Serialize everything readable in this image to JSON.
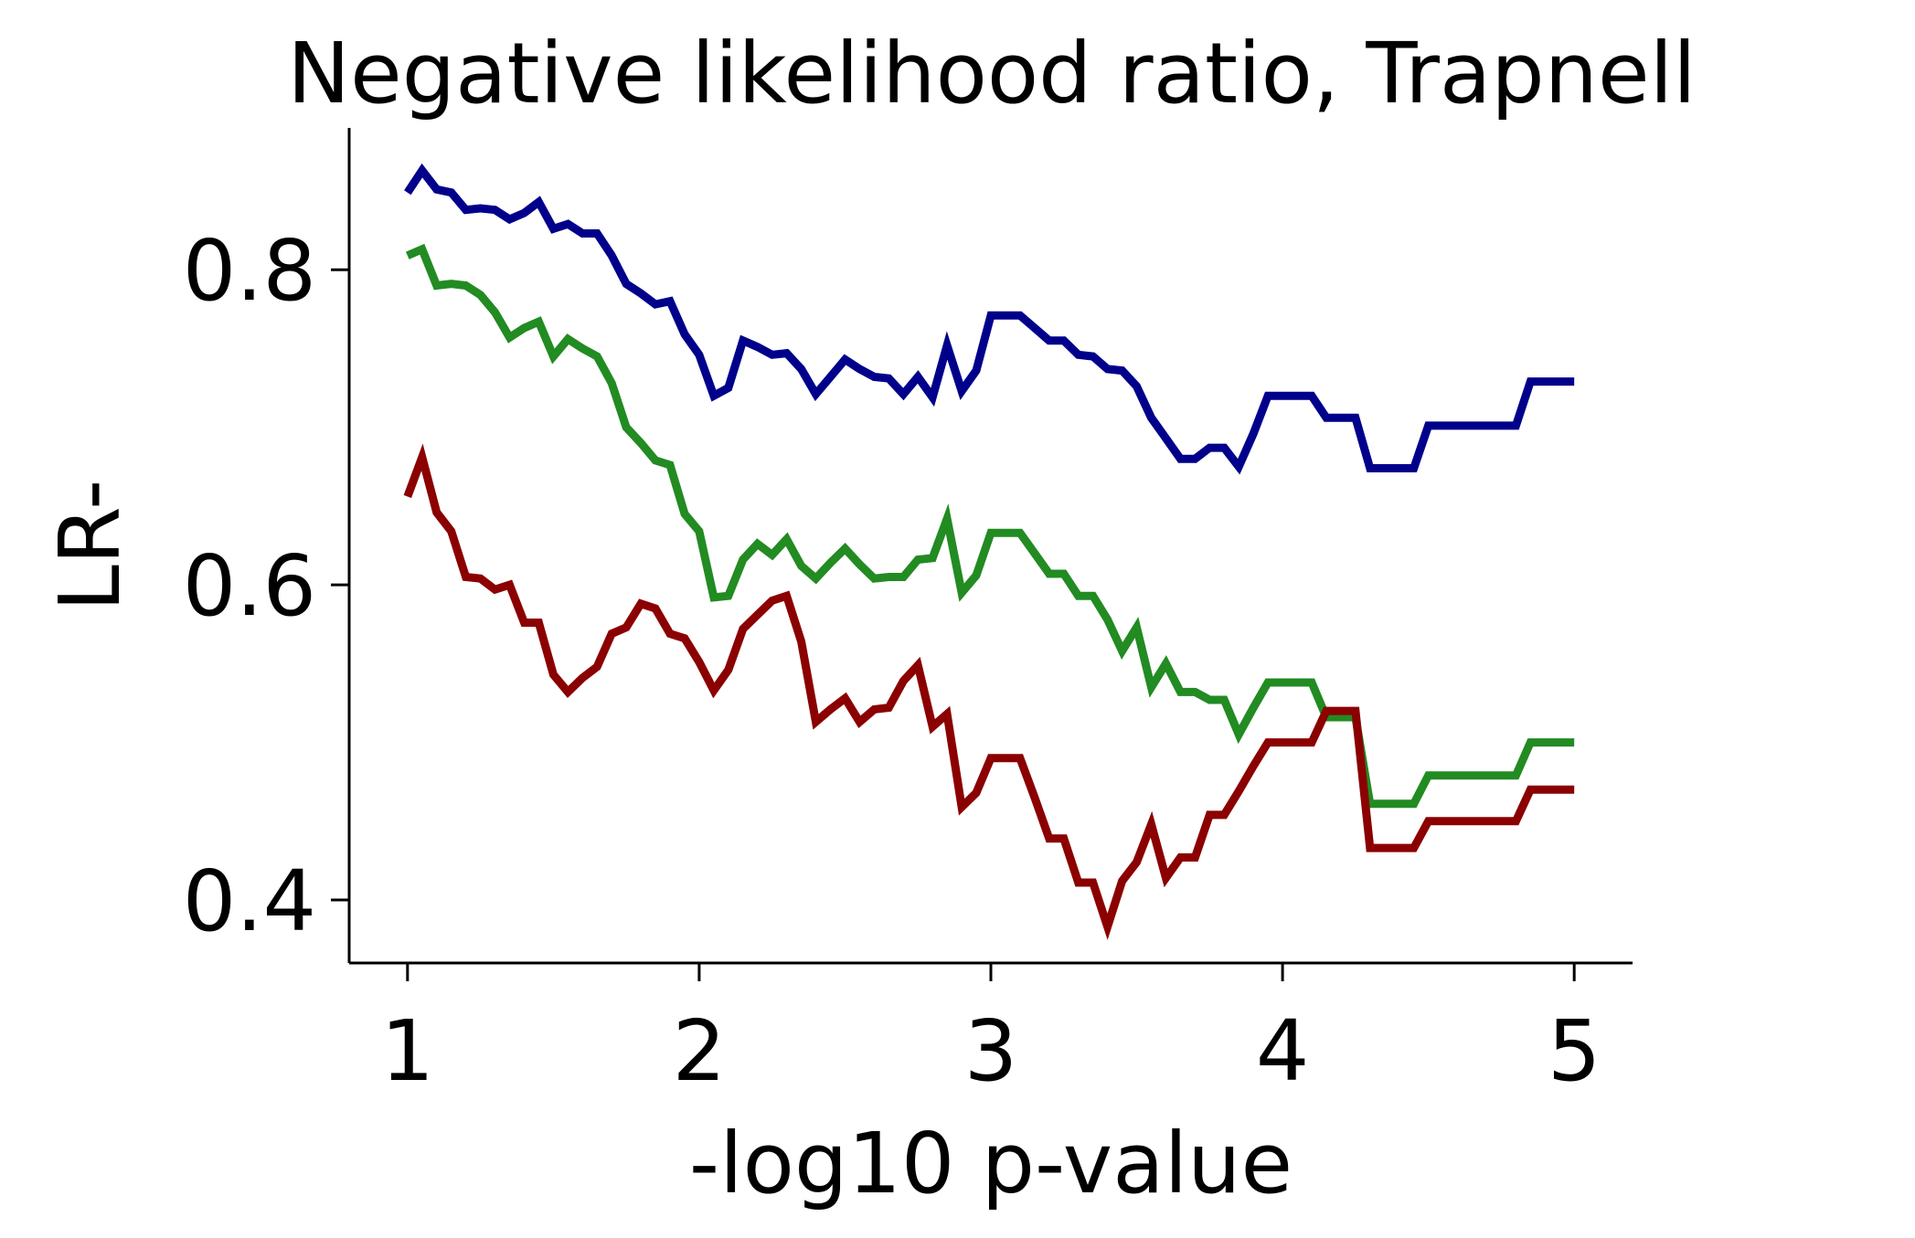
{
  "chart_data": {
    "type": "line",
    "title": "Negative likelihood ratio, Trapnell",
    "xlabel": "-log10 p-value",
    "ylabel": "LR-",
    "xlim": [
      0.8,
      5.2
    ],
    "ylim": [
      0.36,
      0.89
    ],
    "xticks": [
      1,
      2,
      3,
      4,
      5
    ],
    "xtick_labels": [
      "1",
      "2",
      "3",
      "4",
      "5"
    ],
    "yticks": [
      0.4,
      0.6,
      0.8
    ],
    "ytick_labels": [
      "0.4",
      "0.6",
      "0.8"
    ],
    "grid": false,
    "series": [
      {
        "color": "#00008b",
        "x": [
          1.0,
          1.05,
          1.1,
          1.15,
          1.2,
          1.25,
          1.3,
          1.35,
          1.4,
          1.45,
          1.5,
          1.55,
          1.6,
          1.65,
          1.7,
          1.75,
          1.8,
          1.85,
          1.9,
          1.95,
          2.0,
          2.05,
          2.1,
          2.15,
          2.2,
          2.25,
          2.3,
          2.35,
          2.4,
          2.45,
          2.5,
          2.55,
          2.6,
          2.65,
          2.7,
          2.75,
          2.8,
          2.85,
          2.9,
          2.95,
          3.0,
          3.05,
          3.1,
          3.15,
          3.2,
          3.25,
          3.3,
          3.35,
          3.4,
          3.45,
          3.5,
          3.55,
          3.6,
          3.65,
          3.7,
          3.75,
          3.8,
          3.85,
          3.9,
          3.95,
          4.0,
          4.05,
          4.1,
          4.15,
          4.2,
          4.25,
          4.3,
          4.35,
          4.4,
          4.45,
          4.5,
          4.55,
          4.6,
          4.65,
          4.7,
          4.75,
          4.8,
          4.85,
          4.9,
          4.95,
          5.0
        ],
        "y": [
          0.849,
          0.863,
          0.851,
          0.849,
          0.838,
          0.839,
          0.838,
          0.832,
          0.836,
          0.843,
          0.826,
          0.829,
          0.823,
          0.823,
          0.809,
          0.791,
          0.785,
          0.778,
          0.78,
          0.759,
          0.746,
          0.72,
          0.725,
          0.755,
          0.751,
          0.746,
          0.747,
          0.737,
          0.721,
          0.732,
          0.743,
          0.737,
          0.732,
          0.731,
          0.721,
          0.732,
          0.719,
          0.752,
          0.723,
          0.736,
          0.771,
          0.771,
          0.771,
          0.763,
          0.755,
          0.755,
          0.746,
          0.745,
          0.737,
          0.736,
          0.726,
          0.706,
          0.693,
          0.68,
          0.68,
          0.687,
          0.687,
          0.675,
          0.696,
          0.72,
          0.72,
          0.72,
          0.72,
          0.706,
          0.706,
          0.706,
          0.674,
          0.674,
          0.674,
          0.674,
          0.701,
          0.701,
          0.701,
          0.701,
          0.701,
          0.701,
          0.701,
          0.729,
          0.729,
          0.729,
          0.729
        ]
      },
      {
        "color": "#228b22",
        "x": [
          1.0,
          1.05,
          1.1,
          1.15,
          1.2,
          1.25,
          1.3,
          1.35,
          1.4,
          1.45,
          1.5,
          1.55,
          1.6,
          1.65,
          1.7,
          1.75,
          1.8,
          1.85,
          1.9,
          1.95,
          2.0,
          2.05,
          2.1,
          2.15,
          2.2,
          2.25,
          2.3,
          2.35,
          2.4,
          2.45,
          2.5,
          2.55,
          2.6,
          2.65,
          2.7,
          2.75,
          2.8,
          2.85,
          2.9,
          2.95,
          3.0,
          3.05,
          3.1,
          3.15,
          3.2,
          3.25,
          3.3,
          3.35,
          3.4,
          3.45,
          3.5,
          3.55,
          3.6,
          3.65,
          3.7,
          3.75,
          3.8,
          3.85,
          3.9,
          3.95,
          4.0,
          4.05,
          4.1,
          4.15,
          4.2,
          4.25,
          4.3,
          4.35,
          4.4,
          4.45,
          4.5,
          4.55,
          4.6,
          4.65,
          4.7,
          4.75,
          4.8,
          4.85,
          4.9,
          4.95,
          5.0
        ],
        "y": [
          0.809,
          0.813,
          0.79,
          0.791,
          0.79,
          0.784,
          0.773,
          0.757,
          0.763,
          0.767,
          0.745,
          0.756,
          0.75,
          0.745,
          0.728,
          0.7,
          0.69,
          0.679,
          0.676,
          0.645,
          0.634,
          0.592,
          0.593,
          0.616,
          0.626,
          0.619,
          0.629,
          0.612,
          0.604,
          0.614,
          0.623,
          0.613,
          0.604,
          0.605,
          0.605,
          0.616,
          0.617,
          0.642,
          0.595,
          0.606,
          0.633,
          0.633,
          0.633,
          0.62,
          0.607,
          0.607,
          0.593,
          0.593,
          0.578,
          0.558,
          0.573,
          0.535,
          0.55,
          0.532,
          0.532,
          0.527,
          0.527,
          0.505,
          0.522,
          0.538,
          0.538,
          0.538,
          0.538,
          0.516,
          0.516,
          0.516,
          0.461,
          0.461,
          0.461,
          0.461,
          0.479,
          0.479,
          0.479,
          0.479,
          0.479,
          0.479,
          0.479,
          0.5,
          0.5,
          0.5,
          0.5
        ]
      },
      {
        "color": "#8b0000",
        "x": [
          1.0,
          1.05,
          1.1,
          1.15,
          1.2,
          1.25,
          1.3,
          1.35,
          1.4,
          1.45,
          1.5,
          1.55,
          1.6,
          1.65,
          1.7,
          1.75,
          1.8,
          1.85,
          1.9,
          1.95,
          2.0,
          2.05,
          2.1,
          2.15,
          2.2,
          2.25,
          2.3,
          2.35,
          2.4,
          2.45,
          2.5,
          2.55,
          2.6,
          2.65,
          2.7,
          2.75,
          2.8,
          2.85,
          2.9,
          2.95,
          3.0,
          3.05,
          3.1,
          3.15,
          3.2,
          3.25,
          3.3,
          3.35,
          3.4,
          3.45,
          3.5,
          3.55,
          3.6,
          3.65,
          3.7,
          3.75,
          3.8,
          3.85,
          3.9,
          3.95,
          4.0,
          4.05,
          4.1,
          4.15,
          4.2,
          4.25,
          4.3,
          4.35,
          4.4,
          4.45,
          4.5,
          4.55,
          4.6,
          4.65,
          4.7,
          4.75,
          4.8,
          4.85,
          4.9,
          4.95,
          5.0
        ],
        "y": [
          0.656,
          0.681,
          0.646,
          0.634,
          0.605,
          0.604,
          0.597,
          0.6,
          0.576,
          0.576,
          0.543,
          0.532,
          0.541,
          0.548,
          0.569,
          0.573,
          0.588,
          0.585,
          0.569,
          0.566,
          0.551,
          0.533,
          0.546,
          0.572,
          0.581,
          0.59,
          0.593,
          0.564,
          0.513,
          0.521,
          0.528,
          0.513,
          0.521,
          0.522,
          0.539,
          0.549,
          0.51,
          0.518,
          0.459,
          0.468,
          0.49,
          0.49,
          0.49,
          0.465,
          0.439,
          0.439,
          0.411,
          0.411,
          0.383,
          0.412,
          0.424,
          0.448,
          0.414,
          0.427,
          0.427,
          0.454,
          0.454,
          0.469,
          0.485,
          0.5,
          0.5,
          0.5,
          0.5,
          0.52,
          0.52,
          0.52,
          0.433,
          0.433,
          0.433,
          0.433,
          0.45,
          0.45,
          0.45,
          0.45,
          0.45,
          0.45,
          0.45,
          0.47,
          0.47,
          0.47,
          0.47
        ]
      }
    ]
  }
}
